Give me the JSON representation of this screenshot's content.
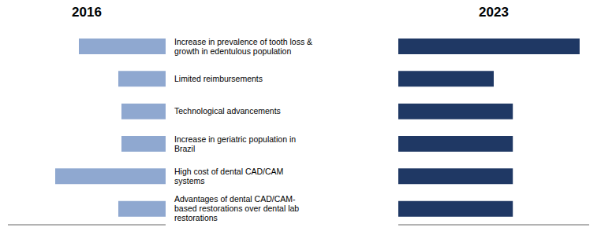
{
  "chart_data": {
    "type": "bar",
    "orientation": "horizontal",
    "categories": [
      "Increase in prevalence of tooth loss &\ngrowth in edentulous population",
      "Limited reimbursements",
      "Technological advancements",
      "Increase in geriatric population in\nBrazil",
      "High cost of dental CAD/CAM\nsystems",
      "Advantages of dental CAD/CAM-\nbased restorations over dental lab\nrestorations"
    ],
    "series": [
      {
        "name": "2016",
        "color": "#8fa8d0",
        "values": [
          5.5,
          3.0,
          2.8,
          2.8,
          7.0,
          3.0
        ]
      },
      {
        "name": "2023",
        "color": "#1f3864",
        "values": [
          9.5,
          5.0,
          6.0,
          6.0,
          6.0,
          6.0
        ]
      }
    ],
    "xlim": [
      0,
      10
    ],
    "tick_labels": "y",
    "grid": false
  }
}
